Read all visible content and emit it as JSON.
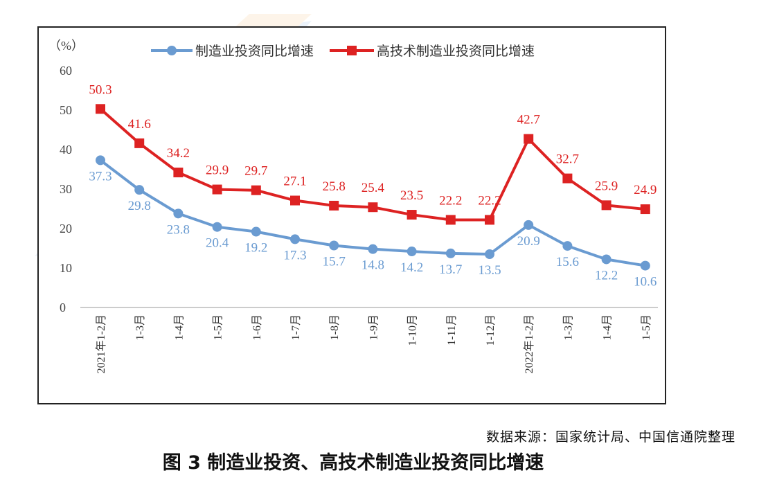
{
  "colors": {
    "manufacturing": "#6A9BD1",
    "hightech": "#DD2222"
  },
  "source_note": "数据来源：国家统计局、中国信通院整理",
  "caption": "图 3  制造业投资、高技术制造业投资同比增速",
  "chart_data": {
    "type": "line",
    "unit_label": "（%）",
    "categories": [
      "2021年1-2月",
      "1-3月",
      "1-4月",
      "1-5月",
      "1-6月",
      "1-7月",
      "1-8月",
      "1-9月",
      "1-10月",
      "1-11月",
      "1-12月",
      "2022年1-2月",
      "1-3月",
      "1-4月",
      "1-5月"
    ],
    "ylim": [
      0,
      60
    ],
    "yticks": [
      0,
      10,
      20,
      30,
      40,
      50,
      60
    ],
    "legend_position": "top",
    "grid": false,
    "series": [
      {
        "name": "制造业投资同比增速",
        "values": [
          37.3,
          29.8,
          23.8,
          20.4,
          19.2,
          17.3,
          15.7,
          14.8,
          14.2,
          13.7,
          13.5,
          20.9,
          15.6,
          12.2,
          10.6
        ]
      },
      {
        "name": "高技术制造业投资同比增速",
        "values": [
          50.3,
          41.6,
          34.2,
          29.9,
          29.7,
          27.1,
          25.8,
          25.4,
          23.5,
          22.2,
          22.2,
          42.7,
          32.7,
          25.9,
          24.9
        ]
      }
    ]
  }
}
